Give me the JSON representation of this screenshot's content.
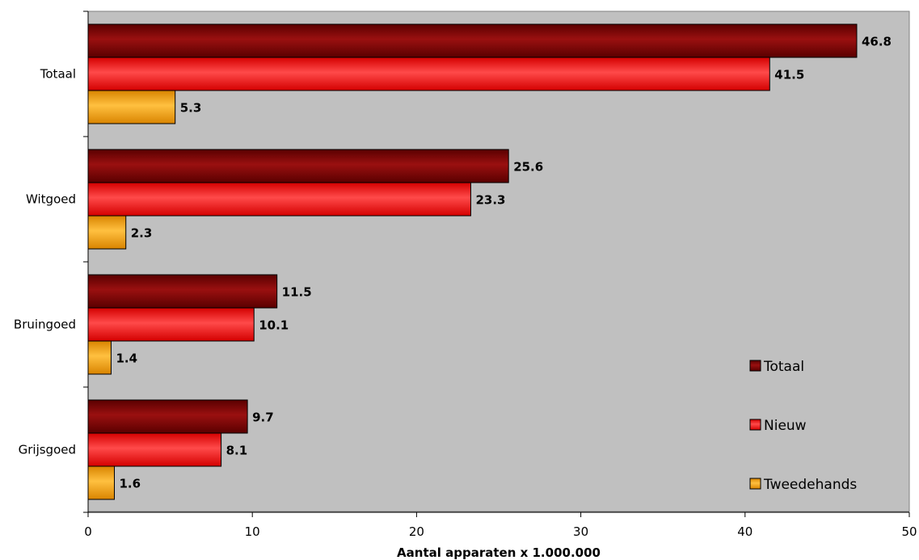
{
  "chart_data": {
    "type": "bar",
    "orientation": "horizontal",
    "categories": [
      "Totaal",
      "Witgoed",
      "Bruingoed",
      "Grijsgoed"
    ],
    "series": [
      {
        "name": "Totaal",
        "values": [
          46.8,
          25.6,
          11.5,
          9.7
        ],
        "color": "#800000"
      },
      {
        "name": "Nieuw",
        "values": [
          41.5,
          23.3,
          10.1,
          8.1
        ],
        "color": "#ff1a1a"
      },
      {
        "name": "Tweedehands",
        "values": [
          5.3,
          2.3,
          1.4,
          1.6
        ],
        "color": "#f5a000"
      }
    ],
    "xlabel": "Aantal apparaten x 1.000.000",
    "xlim": [
      0,
      50
    ],
    "xticks": [
      0,
      10,
      20,
      30,
      40,
      50
    ],
    "plot_background": "#c0c0c0",
    "grid": false,
    "legend_position": "bottom-right"
  }
}
